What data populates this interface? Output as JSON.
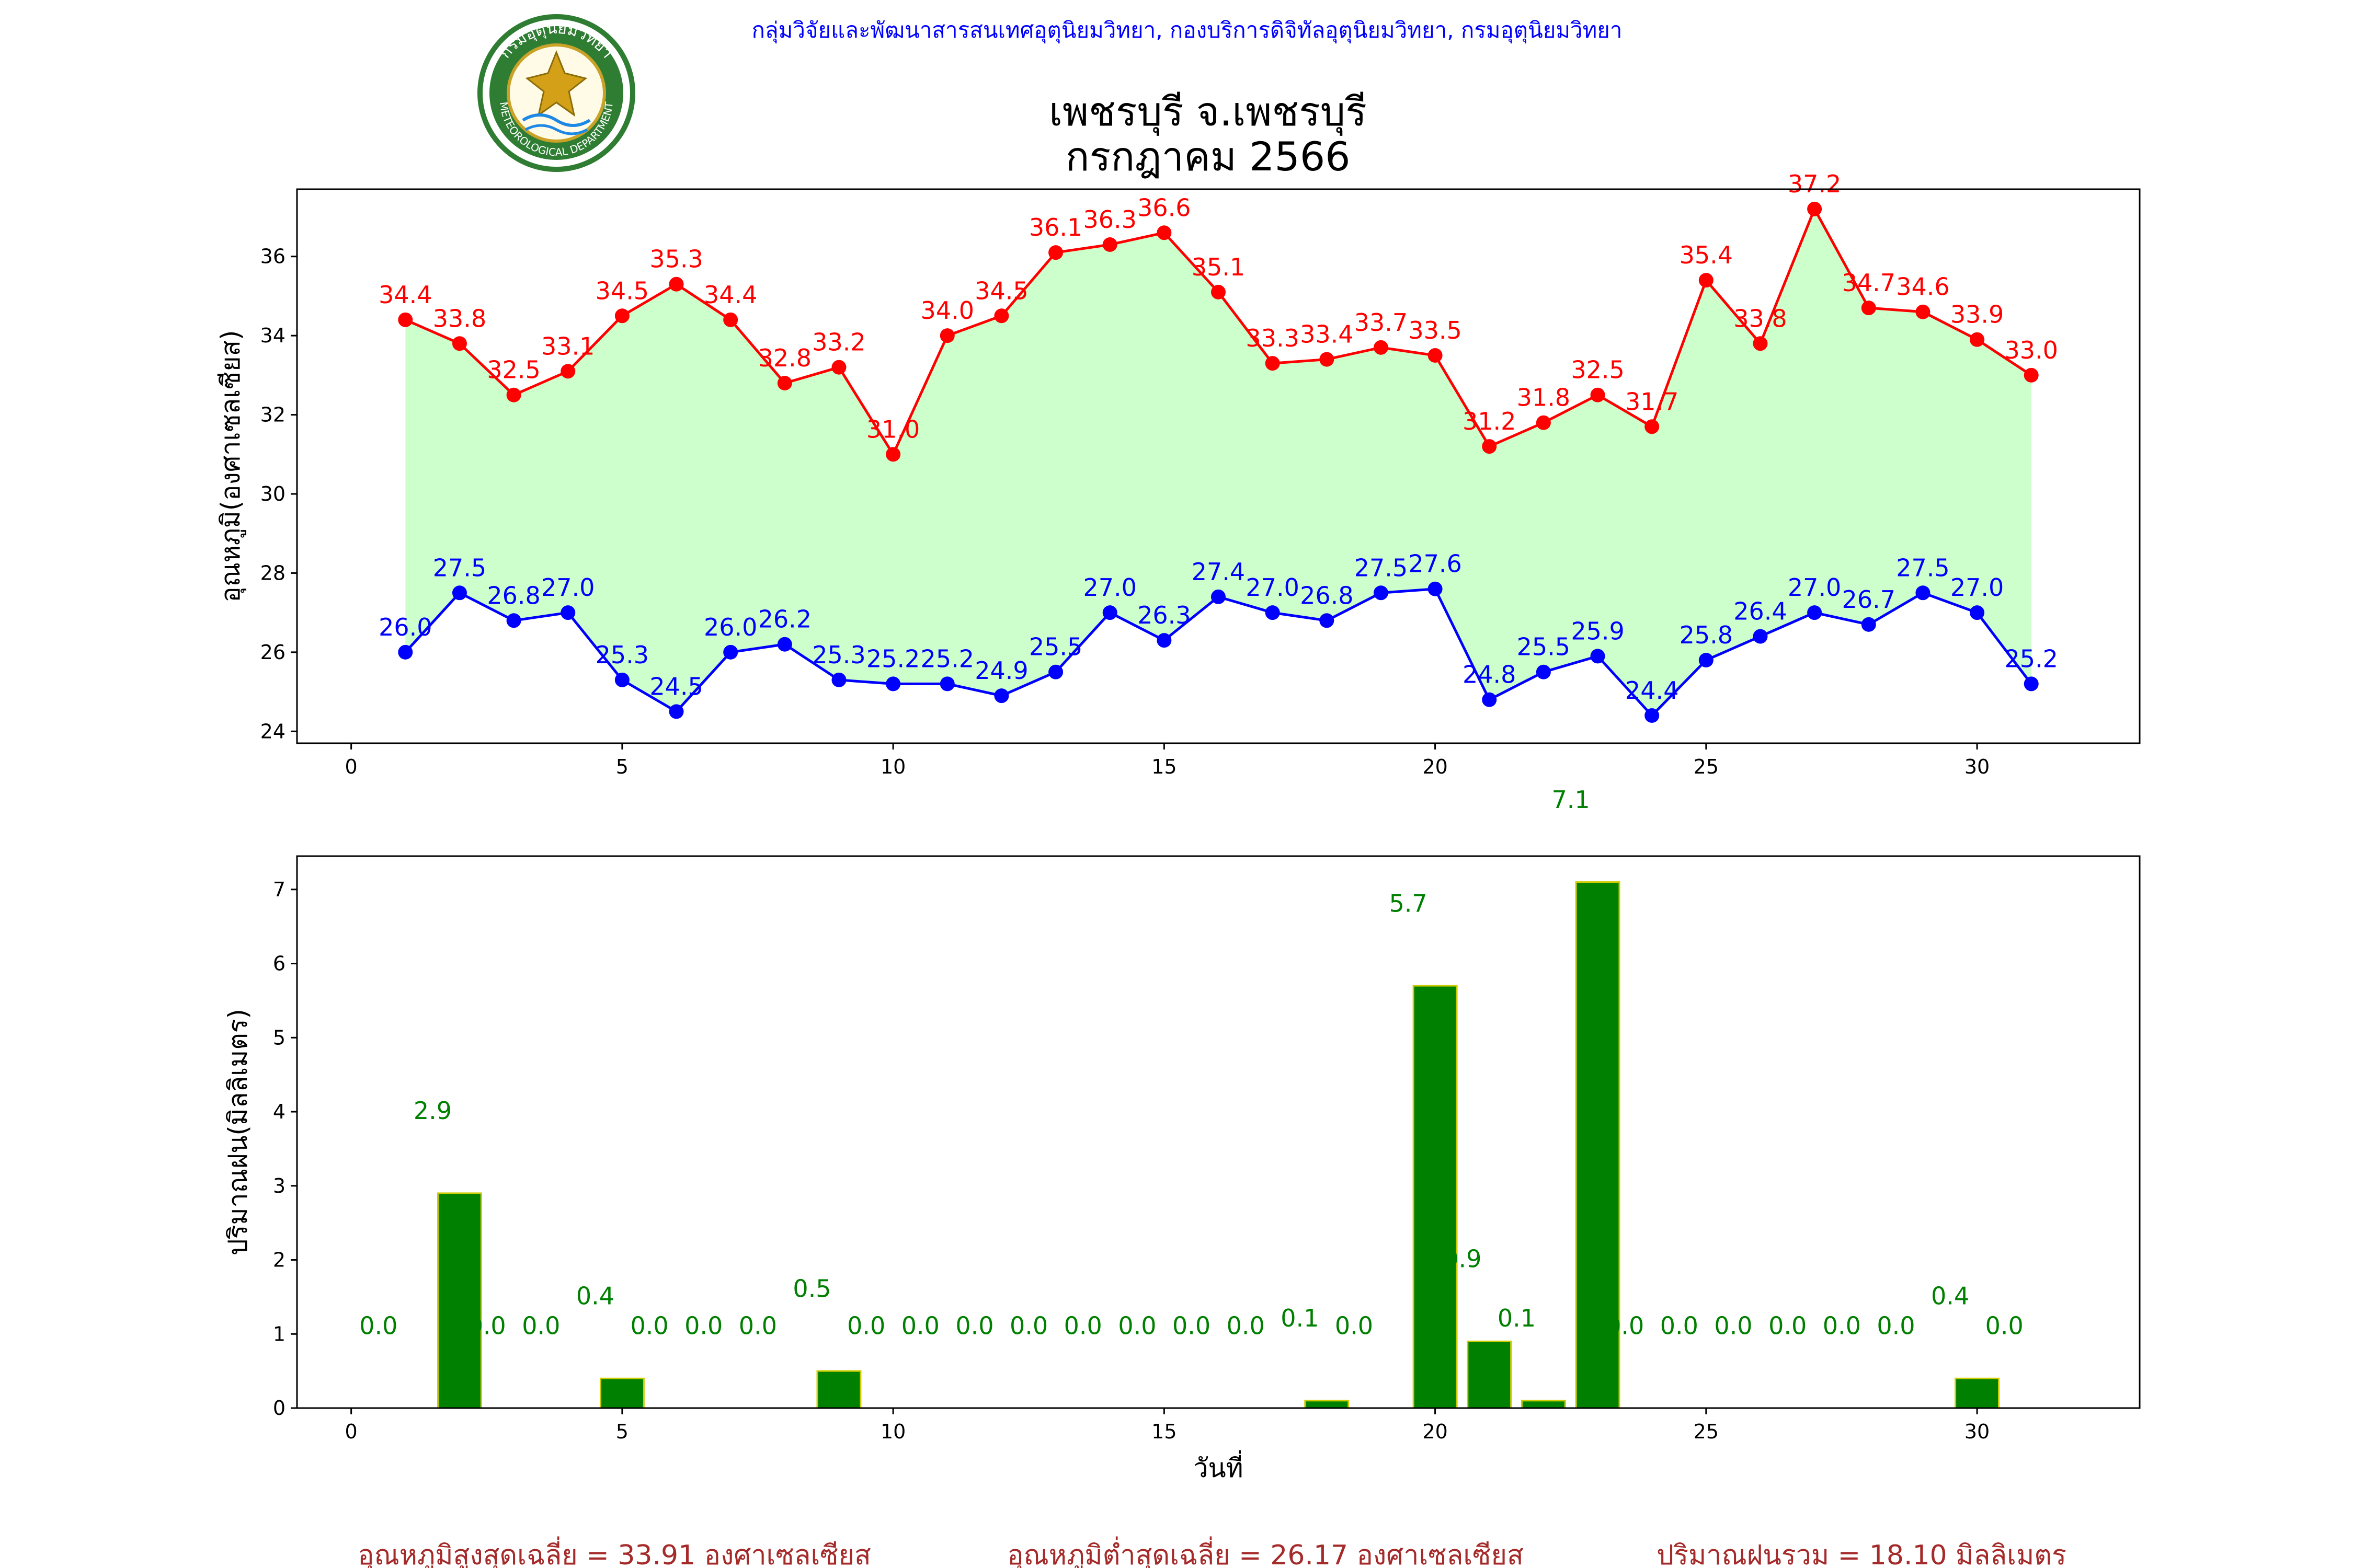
{
  "header": {
    "agency": "กลุ่มวิจัยและพัฒนาสารสนเทศอุตุนิยมวิทยา, กองบริการดิจิทัลอุตุนิยมวิทยา, กรมอุตุนิยมวิทยา",
    "title_line1": "เพชรบุรี จ.เพชรบุรี",
    "title_line2": "กรกฎาคม 2566",
    "logo_text_top": "กรมอุตุนิยมวิทยา",
    "logo_text_bottom": "METEOROLOGICAL DEPARTMENT"
  },
  "colors": {
    "max_temp": "#ff0000",
    "min_temp": "#0000ff",
    "fill": "#ccffcc",
    "rain_bar": "#008000",
    "rain_edge": "#cccc00",
    "rain_label": "#008000",
    "agency_text": "#0000ff",
    "summary_text": "#a52a2a"
  },
  "chart_data": [
    {
      "type": "line",
      "title": "",
      "xlabel": "",
      "ylabel": "อุณหภูมิ(องศาเซลเซียส)",
      "xlim": [
        -1,
        33
      ],
      "ylim": [
        23.7,
        37.7
      ],
      "xticks": [
        0,
        5,
        10,
        15,
        20,
        25,
        30
      ],
      "yticks": [
        24,
        26,
        28,
        30,
        32,
        34,
        36
      ],
      "x": [
        1,
        2,
        3,
        4,
        5,
        6,
        7,
        8,
        9,
        10,
        11,
        12,
        13,
        14,
        15,
        16,
        17,
        18,
        19,
        20,
        21,
        22,
        23,
        24,
        25,
        26,
        27,
        28,
        29,
        30,
        31
      ],
      "fill_between": true,
      "series": [
        {
          "key": "max",
          "values": [
            34.4,
            33.8,
            32.5,
            33.1,
            34.5,
            35.3,
            34.4,
            32.8,
            33.2,
            31.0,
            34.0,
            34.5,
            36.1,
            36.3,
            36.6,
            35.1,
            33.3,
            33.4,
            33.7,
            33.5,
            31.2,
            31.8,
            32.5,
            31.7,
            35.4,
            33.8,
            37.2,
            34.7,
            34.6,
            33.9,
            33.0
          ]
        },
        {
          "key": "min",
          "values": [
            26.0,
            27.5,
            26.8,
            27.0,
            25.3,
            24.5,
            26.0,
            26.2,
            25.3,
            25.2,
            25.2,
            24.9,
            25.5,
            27.0,
            26.3,
            27.4,
            27.0,
            26.8,
            27.5,
            27.6,
            24.8,
            25.5,
            25.9,
            24.4,
            25.8,
            26.4,
            27.0,
            26.7,
            27.5,
            27.0,
            25.2
          ]
        }
      ]
    },
    {
      "type": "bar",
      "title": "",
      "xlabel": "วันที่",
      "ylabel": "ปริมาณฝน(มิลลิเมตร)",
      "xlim": [
        -1,
        33
      ],
      "ylim": [
        0,
        7.45
      ],
      "xticks": [
        0,
        5,
        10,
        15,
        20,
        25,
        30
      ],
      "yticks": [
        0,
        1,
        2,
        3,
        4,
        5,
        6,
        7
      ],
      "x": [
        1,
        2,
        3,
        4,
        5,
        6,
        7,
        8,
        9,
        10,
        11,
        12,
        13,
        14,
        15,
        16,
        17,
        18,
        19,
        20,
        21,
        22,
        23,
        24,
        25,
        26,
        27,
        28,
        29,
        30,
        31
      ],
      "values": [
        0.0,
        2.9,
        0.0,
        0.0,
        0.4,
        0.0,
        0.0,
        0.0,
        0.5,
        0.0,
        0.0,
        0.0,
        0.0,
        0.0,
        0.0,
        0.0,
        0.0,
        0.1,
        0.0,
        5.7,
        0.9,
        0.1,
        7.1,
        0.0,
        0.0,
        0.0,
        0.0,
        0.0,
        0.0,
        0.4,
        0.0
      ]
    }
  ],
  "summary": {
    "avg_max": "อุณหภูมิสูงสุดเฉลี่ย = 33.91 องศาเซลเซียส",
    "avg_min": "อุณหภูมิต่ำสุดเฉลี่ย = 26.17 องศาเซลเซียส",
    "total_rain": "ปริมาณฝนรวม = 18.10 มิลลิเมตร"
  }
}
